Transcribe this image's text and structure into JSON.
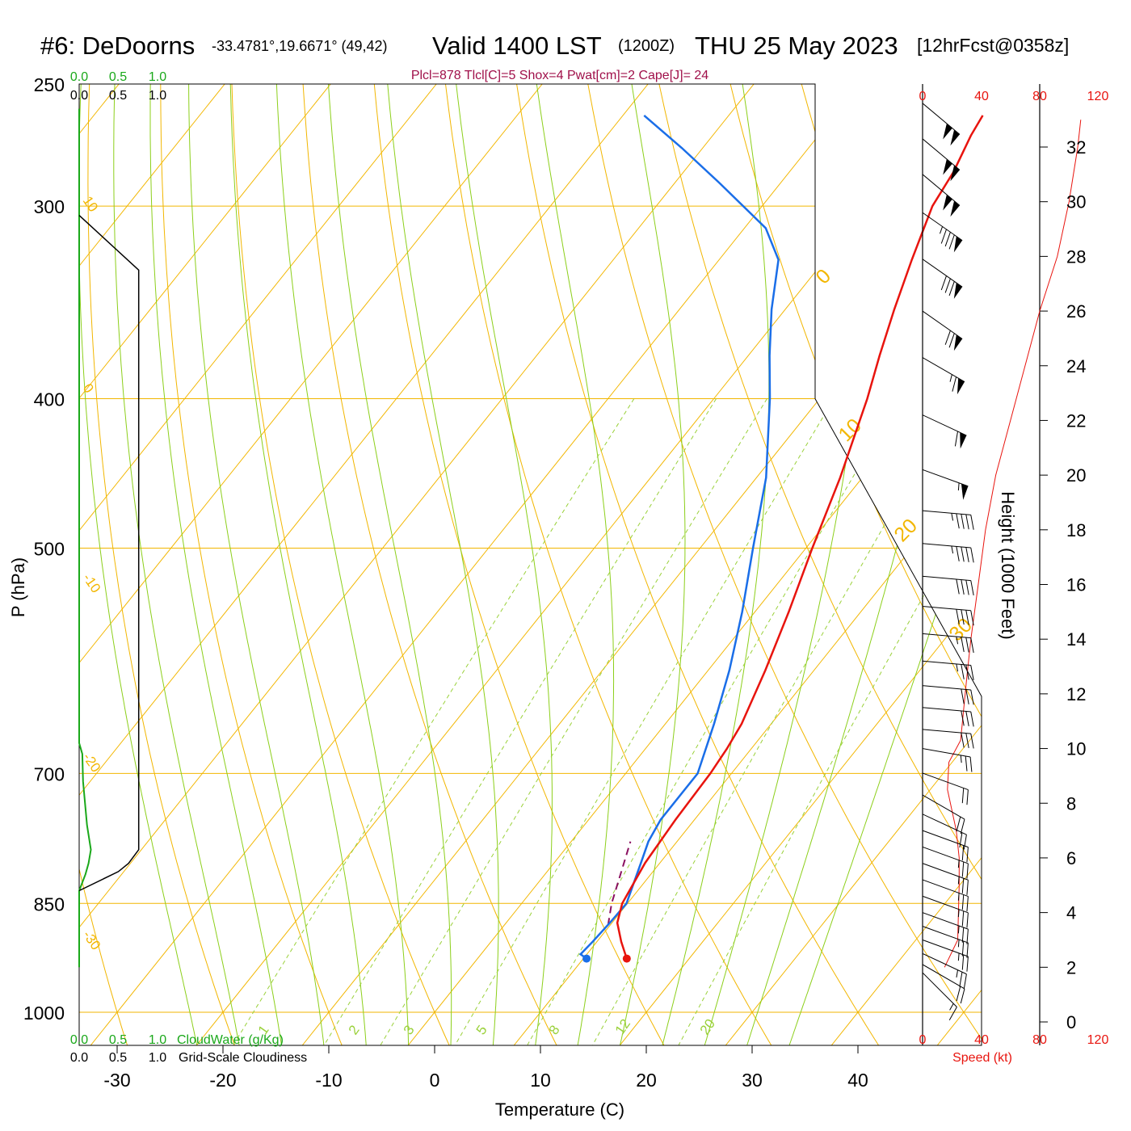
{
  "header": {
    "station": "#6: DeDoorns",
    "coords": "-33.4781°,19.6671° (49,42)",
    "valid": "Valid 1400 LST",
    "utc": "(1200Z)",
    "date": "THU 25 May 2023",
    "forecast": "[12hrFcst@0358z]",
    "indices": "Plcl=878 Tlcl[C]=5 Shox=4 Pwat[cm]=2 Cape[J]= 24"
  },
  "colors": {
    "isotherm": "#f2b600",
    "dry_adiabat": "#f2b600",
    "moist_adiabat": "#8ccf1a",
    "mixing_ratio": "#9ad13a",
    "temperature": "#e8140e",
    "dewpoint": "#1a6ee8",
    "parcel": "#8a1060",
    "cloud_water": "#1aa81a",
    "cloudiness": "#000000",
    "wind_speed": "#e8140e",
    "indices_text": "#a0104a"
  },
  "axes": {
    "xlabel": "Temperature (C)",
    "ylabel": "P (hPa)",
    "height_label": "Height (1000 Feet)",
    "speed_label": "Speed (kt)",
    "x_ticks": [
      -30,
      -20,
      -10,
      0,
      10,
      20,
      30,
      40
    ],
    "p_ticks": [
      250,
      300,
      400,
      500,
      700,
      850,
      1000
    ],
    "height_ticks": [
      0,
      2,
      4,
      6,
      8,
      10,
      12,
      14,
      16,
      18,
      20,
      22,
      24,
      26,
      28,
      30,
      32
    ],
    "speed_ticks": [
      0,
      40,
      80,
      120
    ],
    "cloud_ticks": [
      "0.0",
      "0.5",
      "1.0"
    ],
    "cloud_water_label": "CloudWater (g/Kg)",
    "cloudiness_label": "Grid-Scale Cloudiness",
    "mixing_ratio_labels": [
      "1",
      "2",
      "3",
      "5",
      "8",
      "12",
      "20"
    ],
    "dry_adiabat_labels": [
      "10",
      "0",
      "-10",
      "-20",
      "-30"
    ],
    "moist_labels": [
      "0",
      "10",
      "20",
      "30"
    ]
  },
  "chart_data": {
    "type": "skew-t",
    "title": "#6: DeDoorns",
    "xlim": [
      -33,
      47
    ],
    "plim": [
      250,
      1050
    ],
    "height_range_kft": [
      0,
      32
    ],
    "temperature": [
      {
        "p": 923,
        "t": 14.1
      },
      {
        "p": 900,
        "t": 12.3
      },
      {
        "p": 875,
        "t": 10.5
      },
      {
        "p": 850,
        "t": 9.5
      },
      {
        "p": 800,
        "t": 8.6
      },
      {
        "p": 750,
        "t": 8.2
      },
      {
        "p": 700,
        "t": 8.0
      },
      {
        "p": 675,
        "t": 7.7
      },
      {
        "p": 650,
        "t": 7.2
      },
      {
        "p": 600,
        "t": 5.4
      },
      {
        "p": 550,
        "t": 3.2
      },
      {
        "p": 500,
        "t": 0.6
      },
      {
        "p": 450,
        "t": -2.1
      },
      {
        "p": 400,
        "t": -5.5
      },
      {
        "p": 375,
        "t": -7.6
      },
      {
        "p": 350,
        "t": -9.7
      },
      {
        "p": 325,
        "t": -11.8
      },
      {
        "p": 300,
        "t": -13.9
      },
      {
        "p": 285,
        "t": -14.5
      },
      {
        "p": 270,
        "t": -15.6
      },
      {
        "p": 262,
        "t": -16.0
      }
    ],
    "dewpoint": [
      {
        "p": 923,
        "t": 10.3
      },
      {
        "p": 917,
        "t": 9.4
      },
      {
        "p": 900,
        "t": 9.6
      },
      {
        "p": 875,
        "t": 9.8
      },
      {
        "p": 850,
        "t": 9.9
      },
      {
        "p": 800,
        "t": 8.2
      },
      {
        "p": 775,
        "t": 7.3
      },
      {
        "p": 750,
        "t": 6.8
      },
      {
        "p": 700,
        "t": 6.8
      },
      {
        "p": 650,
        "t": 4.6
      },
      {
        "p": 600,
        "t": 2.0
      },
      {
        "p": 550,
        "t": -1.2
      },
      {
        "p": 500,
        "t": -5.0
      },
      {
        "p": 450,
        "t": -9.1
      },
      {
        "p": 400,
        "t": -14.7
      },
      {
        "p": 375,
        "t": -18.0
      },
      {
        "p": 350,
        "t": -21.3
      },
      {
        "p": 325,
        "t": -24.4
      },
      {
        "p": 310,
        "t": -28.0
      },
      {
        "p": 290,
        "t": -35.7
      },
      {
        "p": 275,
        "t": -42.0
      },
      {
        "p": 262,
        "t": -48.0
      }
    ],
    "parcel": [
      {
        "p": 878,
        "t": 9.8
      },
      {
        "p": 850,
        "t": 8.5
      },
      {
        "p": 800,
        "t": 6.6
      },
      {
        "p": 775,
        "t": 5.6
      }
    ],
    "surface_temperature": {
      "p": 923,
      "t": 14.1
    },
    "surface_dewpoint": {
      "p": 923,
      "t": 10.3
    },
    "cloud_water": [
      {
        "kft": 33.4,
        "v": 0.0
      },
      {
        "kft": 10.2,
        "v": 0.0
      },
      {
        "kft": 9.8,
        "v": 0.04
      },
      {
        "kft": 8.8,
        "v": 0.05
      },
      {
        "kft": 7.2,
        "v": 0.1
      },
      {
        "kft": 6.3,
        "v": 0.15
      },
      {
        "kft": 5.8,
        "v": 0.12
      },
      {
        "kft": 5.4,
        "v": 0.08
      },
      {
        "kft": 4.8,
        "v": 0.0
      },
      {
        "kft": 2.0,
        "v": 0.0
      }
    ],
    "cloudiness": [
      {
        "kft": 29.5,
        "v": 0.0
      },
      {
        "kft": 27.5,
        "v": 0.76
      },
      {
        "kft": 6.3,
        "v": 0.76
      },
      {
        "kft": 5.8,
        "v": 0.63
      },
      {
        "kft": 5.5,
        "v": 0.5
      },
      {
        "kft": 4.8,
        "v": 0.0
      }
    ],
    "wind_speed_profile": [
      {
        "kft": 2.0,
        "v": 15
      },
      {
        "kft": 3.0,
        "v": 24
      },
      {
        "kft": 5.0,
        "v": 25
      },
      {
        "kft": 6.0,
        "v": 25
      },
      {
        "kft": 7.0,
        "v": 23
      },
      {
        "kft": 8.5,
        "v": 17
      },
      {
        "kft": 9.5,
        "v": 18
      },
      {
        "kft": 10.3,
        "v": 26
      },
      {
        "kft": 12.5,
        "v": 30
      },
      {
        "kft": 14.0,
        "v": 33
      },
      {
        "kft": 16.0,
        "v": 38
      },
      {
        "kft": 18.0,
        "v": 43
      },
      {
        "kft": 20.0,
        "v": 50
      },
      {
        "kft": 22.0,
        "v": 60
      },
      {
        "kft": 24.0,
        "v": 70
      },
      {
        "kft": 26.0,
        "v": 80
      },
      {
        "kft": 28.0,
        "v": 92
      },
      {
        "kft": 30.0,
        "v": 100
      },
      {
        "kft": 32.0,
        "v": 106
      },
      {
        "kft": 33.0,
        "v": 108
      }
    ],
    "wind_barbs": [
      {
        "kft": 1.8,
        "speed": 15,
        "dir": 315
      },
      {
        "kft": 2.1,
        "speed": 20,
        "dir": 300
      },
      {
        "kft": 2.5,
        "speed": 25,
        "dir": 295
      },
      {
        "kft": 3.0,
        "speed": 25,
        "dir": 290
      },
      {
        "kft": 3.5,
        "speed": 25,
        "dir": 290
      },
      {
        "kft": 4.0,
        "speed": 25,
        "dir": 290
      },
      {
        "kft": 4.6,
        "speed": 25,
        "dir": 290
      },
      {
        "kft": 5.2,
        "speed": 25,
        "dir": 290
      },
      {
        "kft": 5.8,
        "speed": 25,
        "dir": 290
      },
      {
        "kft": 6.4,
        "speed": 25,
        "dir": 290
      },
      {
        "kft": 7.0,
        "speed": 22,
        "dir": 290
      },
      {
        "kft": 7.6,
        "speed": 20,
        "dir": 295
      },
      {
        "kft": 8.3,
        "speed": 18,
        "dir": 300
      },
      {
        "kft": 9.1,
        "speed": 20,
        "dir": 290
      },
      {
        "kft": 10.0,
        "speed": 25,
        "dir": 280
      },
      {
        "kft": 10.7,
        "speed": 28,
        "dir": 275
      },
      {
        "kft": 11.5,
        "speed": 30,
        "dir": 275
      },
      {
        "kft": 12.3,
        "speed": 30,
        "dir": 275
      },
      {
        "kft": 13.2,
        "speed": 35,
        "dir": 275
      },
      {
        "kft": 14.2,
        "speed": 35,
        "dir": 275
      },
      {
        "kft": 15.2,
        "speed": 40,
        "dir": 275
      },
      {
        "kft": 16.3,
        "speed": 40,
        "dir": 275
      },
      {
        "kft": 17.5,
        "speed": 45,
        "dir": 275
      },
      {
        "kft": 18.7,
        "speed": 45,
        "dir": 275
      },
      {
        "kft": 20.2,
        "speed": 55,
        "dir": 290
      },
      {
        "kft": 22.2,
        "speed": 60,
        "dir": 295
      },
      {
        "kft": 24.3,
        "speed": 65,
        "dir": 300
      },
      {
        "kft": 26.0,
        "speed": 70,
        "dir": 305
      },
      {
        "kft": 27.9,
        "speed": 80,
        "dir": 305
      },
      {
        "kft": 29.6,
        "speed": 85,
        "dir": 305
      },
      {
        "kft": 31.0,
        "speed": 100,
        "dir": 310
      },
      {
        "kft": 32.3,
        "speed": 100,
        "dir": 310
      },
      {
        "kft": 33.6,
        "speed": 100,
        "dir": 310
      }
    ]
  }
}
